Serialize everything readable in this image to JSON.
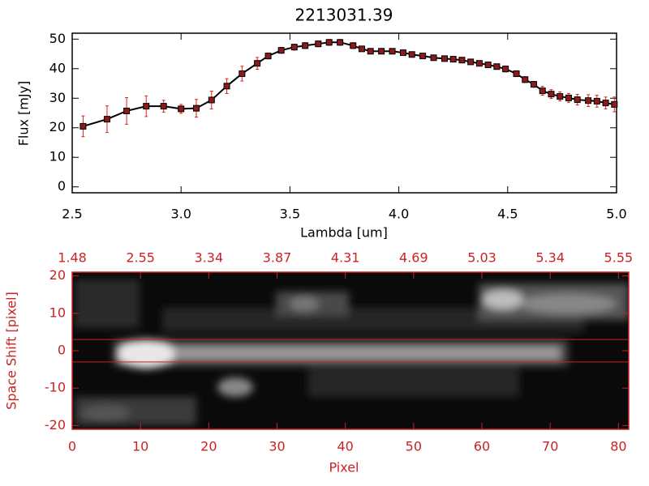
{
  "chart_data": [
    {
      "type": "line",
      "title": "2213031.39",
      "xlabel": "Lambda [um]",
      "ylabel": "Flux [mJy]",
      "xlim": [
        2.5,
        5.0
      ],
      "ylim": [
        -2,
        52
      ],
      "xticks": [
        2.5,
        {
          "value": 3.0,
          "label": "3.0"
        },
        3.5,
        {
          "value": 4.0,
          "label": "4.0"
        },
        4.5,
        {
          "value": 5.0,
          "label": "5.0"
        }
      ],
      "yticks": [
        0,
        10,
        20,
        30,
        40,
        50
      ],
      "color": "#000000",
      "marker_color": "#8b1a1a",
      "error_color": "#dd2222",
      "x": [
        2.55,
        2.66,
        2.75,
        2.84,
        2.92,
        3.0,
        3.07,
        3.14,
        3.21,
        3.28,
        3.35,
        3.4,
        3.46,
        3.52,
        3.57,
        3.63,
        3.68,
        3.73,
        3.79,
        3.83,
        3.87,
        3.92,
        3.97,
        4.02,
        4.06,
        4.11,
        4.16,
        4.21,
        4.25,
        4.29,
        4.33,
        4.37,
        4.41,
        4.45,
        4.49,
        4.54,
        4.58,
        4.62,
        4.66,
        4.7,
        4.74,
        4.78,
        4.82,
        4.87,
        4.91,
        4.95,
        4.99
      ],
      "values": [
        20.5,
        22.9,
        25.7,
        27.3,
        27.3,
        26.4,
        26.6,
        29.4,
        34.1,
        38.3,
        41.8,
        44.3,
        46.2,
        47.3,
        47.8,
        48.4,
        48.9,
        48.9,
        47.8,
        46.7,
        45.9,
        45.9,
        45.9,
        45.4,
        44.8,
        44.3,
        43.7,
        43.4,
        43.2,
        42.9,
        42.3,
        41.8,
        41.3,
        40.7,
        39.9,
        38.3,
        36.3,
        34.7,
        32.5,
        31.4,
        30.6,
        30.1,
        29.5,
        29.2,
        29.0,
        28.4,
        27.9
      ],
      "errors": [
        3.5,
        4.5,
        4.5,
        3.5,
        2.0,
        1.5,
        3.0,
        3.0,
        2.5,
        2.5,
        2.0,
        1.0,
        1.0,
        1.0,
        1.0,
        1.0,
        1.0,
        1.0,
        1.0,
        0.8,
        0.8,
        0.8,
        0.8,
        0.8,
        0.8,
        0.8,
        0.8,
        0.8,
        0.8,
        0.8,
        0.8,
        0.8,
        0.8,
        0.8,
        1.0,
        1.0,
        1.0,
        1.0,
        1.5,
        1.5,
        1.5,
        1.5,
        1.8,
        2.0,
        2.0,
        2.0,
        2.5
      ]
    },
    {
      "type": "heatmap",
      "xlabel": "Pixel",
      "ylabel": "Space Shift [pixel]",
      "color": "#cc2222",
      "xlim": [
        0,
        81.5
      ],
      "ylim": [
        -21,
        21
      ],
      "xticks": [
        0,
        10,
        20,
        30,
        40,
        50,
        60,
        70,
        80
      ],
      "yticks": [
        -20,
        -10,
        0,
        10,
        20
      ],
      "x2ticks": [
        {
          "value": 0,
          "label": "1.48"
        },
        {
          "value": 10,
          "label": "2.55"
        },
        {
          "value": 20,
          "label": "3.34"
        },
        {
          "value": 30,
          "label": "3.87"
        },
        {
          "value": 40,
          "label": "4.31"
        },
        {
          "value": 50,
          "label": "4.69"
        },
        {
          "value": 60,
          "label": "5.03"
        },
        {
          "value": 70,
          "label": "5.34"
        },
        {
          "value": 80,
          "label": "5.55"
        }
      ],
      "hlines": [
        3,
        -3
      ]
    }
  ]
}
